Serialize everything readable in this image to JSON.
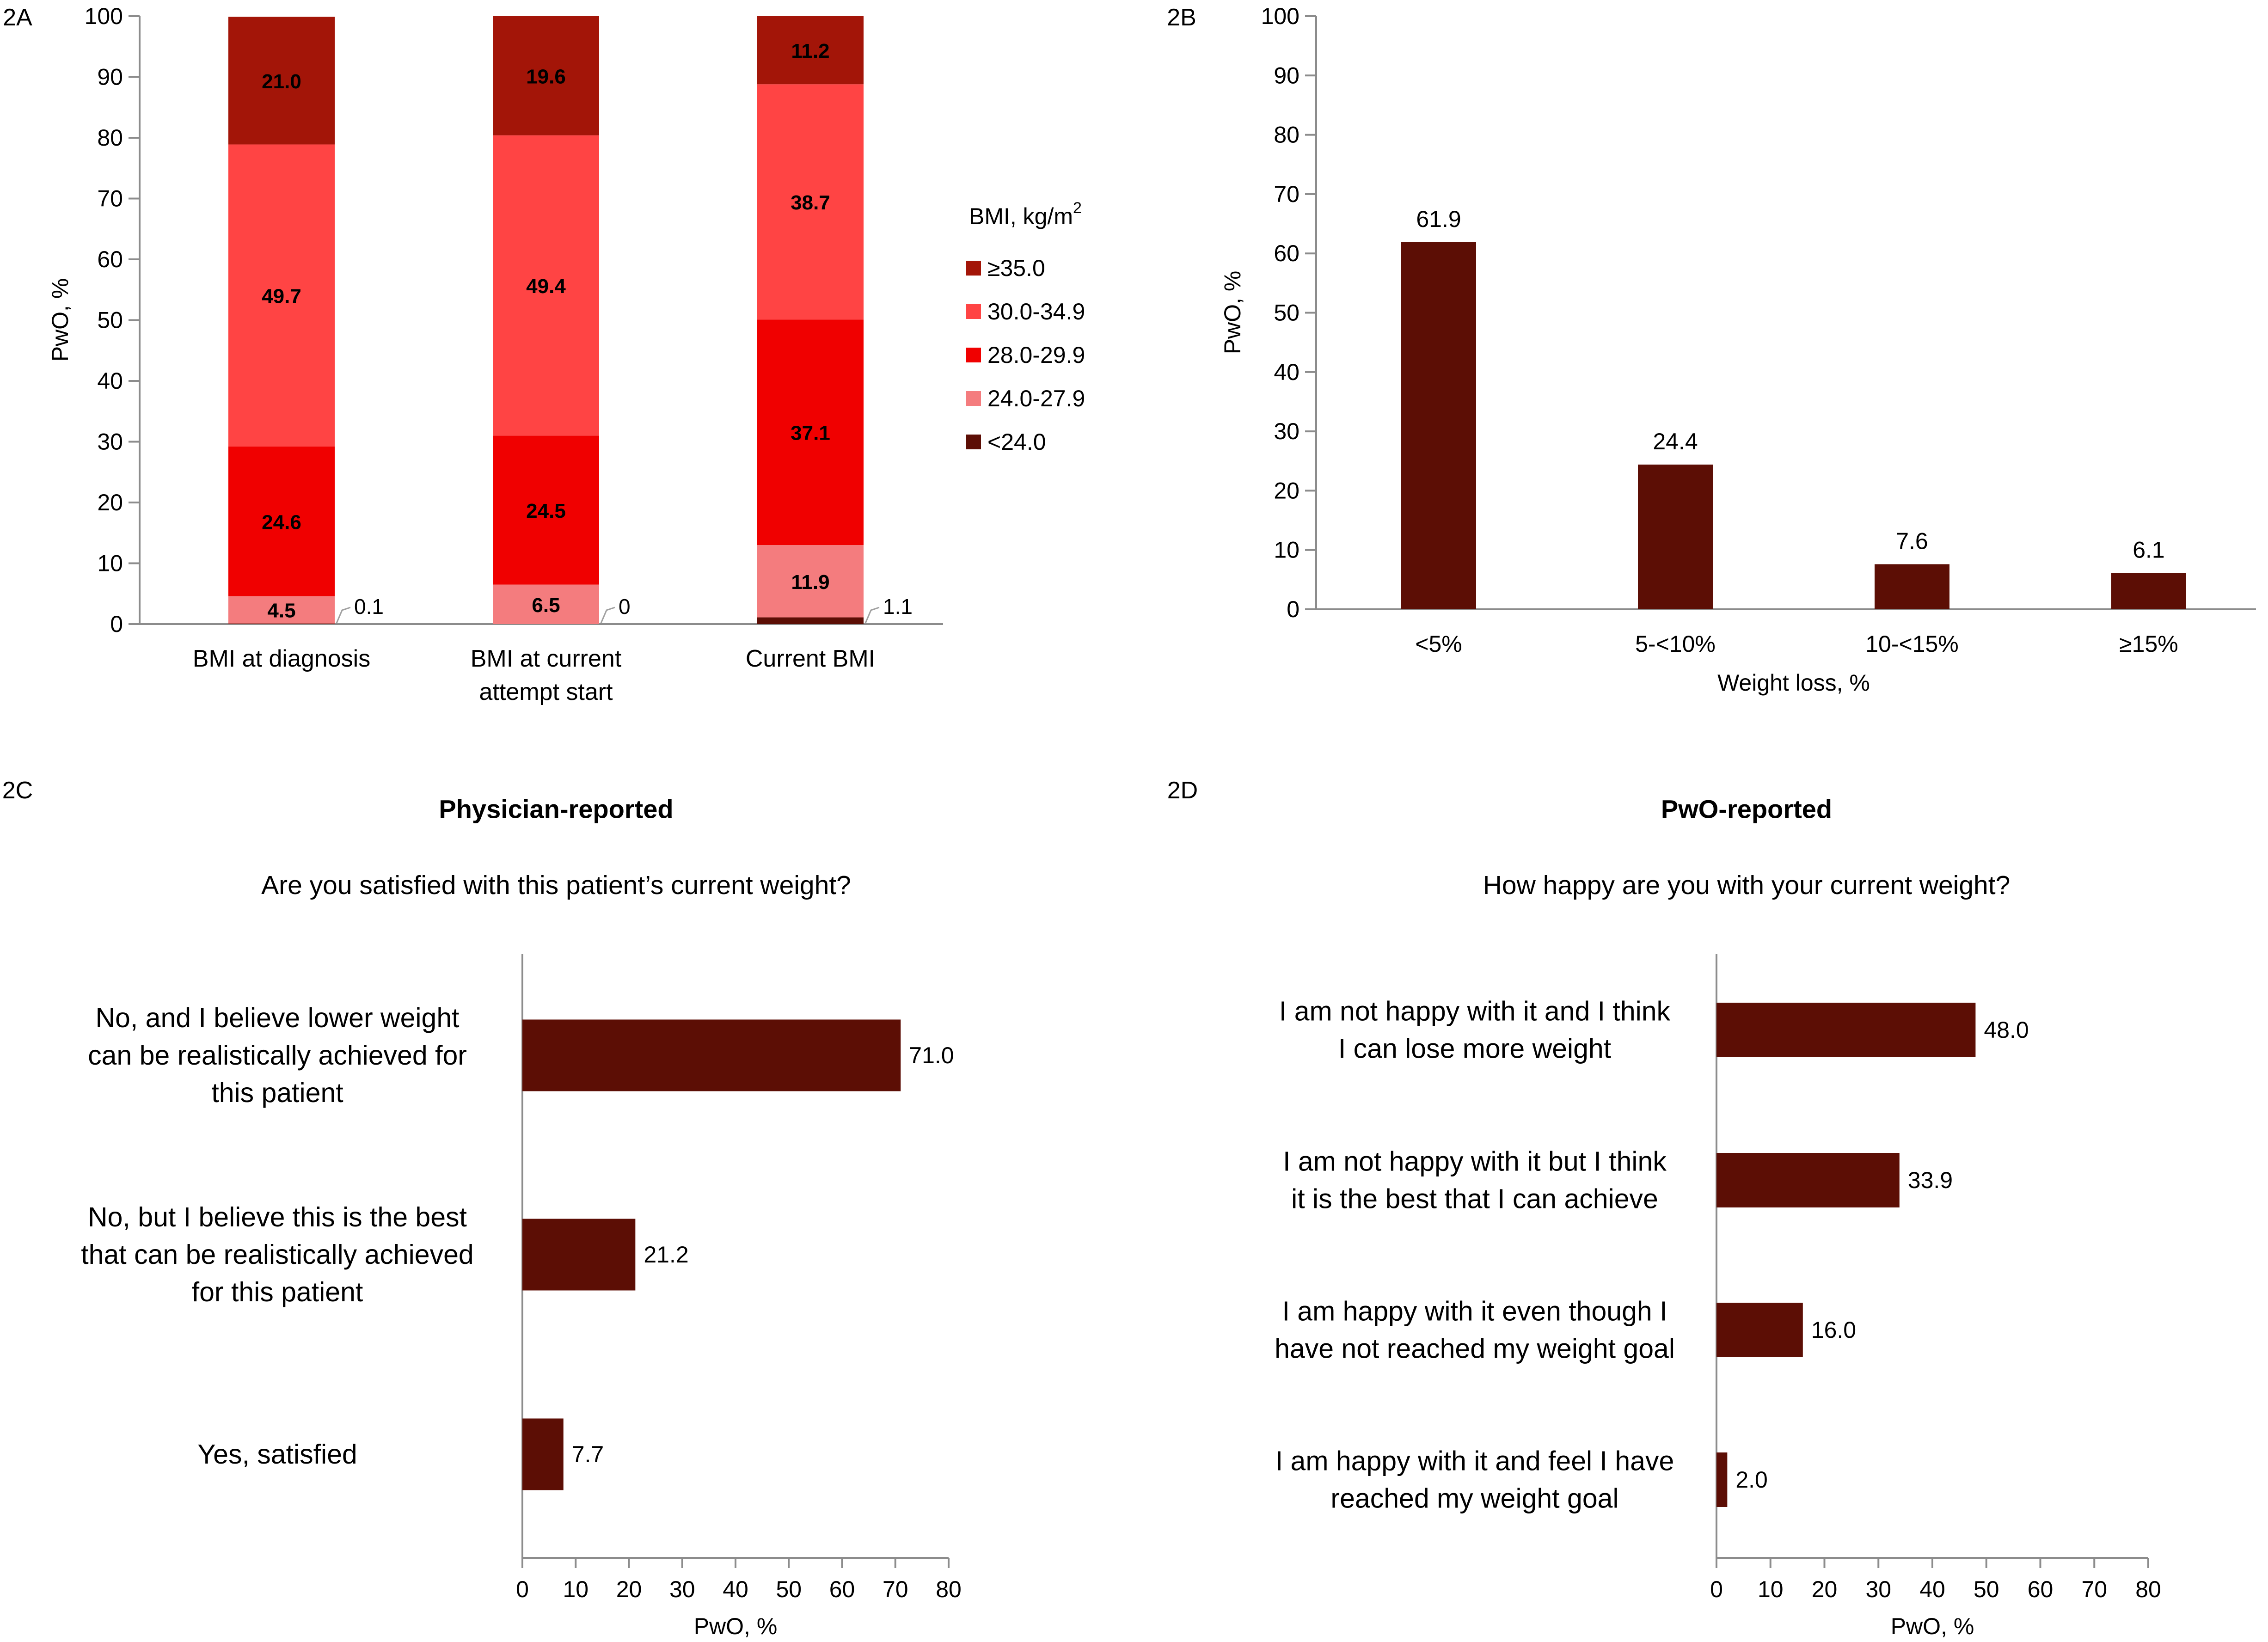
{
  "colors": {
    "lt24": "#5C0E05",
    "c24_27": "#F47C7E",
    "c28_29": "#F00000",
    "c30_34": "#FF4444",
    "ge35": "#A31508",
    "bar": "#5C0E05",
    "axis": "#8C8C8C"
  },
  "chart_data": [
    {
      "id": "2A",
      "type": "bar",
      "stacked": true,
      "panel_label": "2A",
      "ylabel": "PwO, %",
      "ylim": [
        0,
        100
      ],
      "yticks": [
        0,
        10,
        20,
        30,
        40,
        50,
        60,
        70,
        80,
        90,
        100
      ],
      "categories": [
        [
          "BMI at diagnosis"
        ],
        [
          "BMI at current",
          "attempt start"
        ],
        [
          "Current BMI"
        ]
      ],
      "legend_title": "BMI, kg/m",
      "legend_title_sup": "2",
      "series": [
        {
          "name": "<24.0",
          "color_key": "lt24",
          "values": [
            0.1,
            0,
            1.1
          ],
          "labels": [
            "0.1",
            "0",
            "1.1"
          ]
        },
        {
          "name": "24.0-27.9",
          "color_key": "c24_27",
          "values": [
            4.5,
            6.5,
            11.9
          ],
          "labels": [
            "4.5",
            "6.5",
            "11.9"
          ]
        },
        {
          "name": "28.0-29.9",
          "color_key": "c28_29",
          "values": [
            24.6,
            24.5,
            37.1
          ],
          "labels": [
            "24.6",
            "24.5",
            "37.1"
          ]
        },
        {
          "name": "30.0-34.9",
          "color_key": "c30_34",
          "values": [
            49.7,
            49.4,
            38.7
          ],
          "labels": [
            "49.7",
            "49.4",
            "38.7"
          ]
        },
        {
          "name": "≥35.0",
          "color_key": "ge35",
          "values": [
            21.0,
            19.6,
            11.2
          ],
          "labels": [
            "21.0",
            "19.6",
            "11.2"
          ]
        }
      ],
      "legend_order": [
        "≥35.0",
        "30.0-34.9",
        "28.0-29.9",
        "24.0-27.9",
        "<24.0"
      ]
    },
    {
      "id": "2B",
      "type": "bar",
      "panel_label": "2B",
      "ylabel": "PwO, %",
      "xlabel": "Weight loss, %",
      "ylim": [
        0,
        100
      ],
      "yticks": [
        0,
        10,
        20,
        30,
        40,
        50,
        60,
        70,
        80,
        90,
        100
      ],
      "categories": [
        "<5%",
        "5-<10%",
        "10-<15%",
        "≥15%"
      ],
      "values": [
        61.9,
        24.4,
        7.6,
        6.1
      ],
      "labels": [
        "61.9",
        "24.4",
        "7.6",
        "6.1"
      ]
    },
    {
      "id": "2C",
      "type": "bar",
      "orientation": "horizontal",
      "panel_label": "2C",
      "title": "Physician-reported",
      "subtitle": "Are you satisfied with this patient’s current weight?",
      "xlabel": "PwO, %",
      "xlim": [
        0,
        80
      ],
      "xticks": [
        0,
        10,
        20,
        30,
        40,
        50,
        60,
        70,
        80
      ],
      "categories": [
        [
          "No, and I believe lower weight",
          "can be realistically achieved for",
          "this patient"
        ],
        [
          "No, but I believe this is the best",
          "that can be realistically achieved",
          "for this patient"
        ],
        [
          "Yes, satisfied"
        ]
      ],
      "values": [
        71.0,
        21.2,
        7.7
      ],
      "labels": [
        "71.0",
        "21.2",
        "7.7"
      ]
    },
    {
      "id": "2D",
      "type": "bar",
      "orientation": "horizontal",
      "panel_label": "2D",
      "title": "PwO-reported",
      "subtitle": "How happy are you with your current weight?",
      "xlabel": "PwO, %",
      "xlim": [
        0,
        80
      ],
      "xticks": [
        0,
        10,
        20,
        30,
        40,
        50,
        60,
        70,
        80
      ],
      "categories": [
        [
          "I am not happy with it and I think",
          "I can lose more weight"
        ],
        [
          "I am not happy with it but I think",
          "it is the best that I can achieve"
        ],
        [
          "I am happy with it even though I",
          "have not reached my weight goal"
        ],
        [
          "I am happy with it and feel I have",
          "reached my weight goal"
        ]
      ],
      "values": [
        48.0,
        33.9,
        16.0,
        2.0
      ],
      "labels": [
        "48.0",
        "33.9",
        "16.0",
        "2.0"
      ]
    }
  ]
}
